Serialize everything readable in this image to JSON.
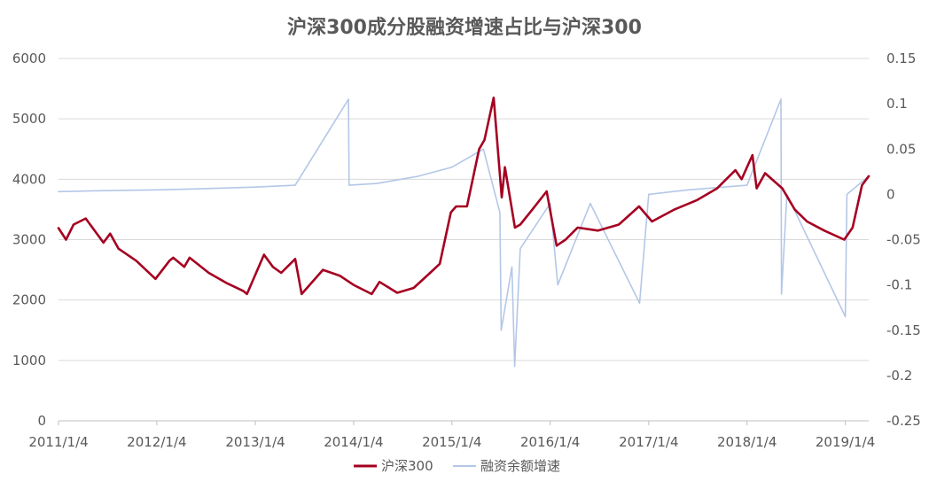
{
  "chart_data": {
    "type": "line",
    "title": "沪深300成分股融资增速占比与沪深300",
    "xlabel": "",
    "ylabel_left": "",
    "ylabel_right": "",
    "x_tick_labels": [
      "2011/1/4",
      "2012/1/4",
      "2013/1/4",
      "2014/1/4",
      "2015/1/4",
      "2016/1/4",
      "2017/1/4",
      "2018/1/4",
      "2019/1/4"
    ],
    "y_left_ticks": [
      "0",
      "1000",
      "2000",
      "3000",
      "4000",
      "5000",
      "6000"
    ],
    "y_right_ticks": [
      "0.15",
      "0.1",
      "0.05",
      "0",
      "-0.05",
      "-0.1",
      "-0.15",
      "-0.2",
      "-0.25"
    ],
    "y_left_lim": [
      0,
      6000
    ],
    "y_right_lim": [
      -0.25,
      0.15
    ],
    "x_range": [
      "2011/1/4",
      "2019/4/1"
    ],
    "grid": true,
    "legend_position": "bottom",
    "series": [
      {
        "name": "沪深300",
        "axis": "left",
        "color": "#A50021",
        "points": [
          [
            "2011/1/4",
            3190
          ],
          [
            "2011/2/1",
            3000
          ],
          [
            "2011/3/1",
            3250
          ],
          [
            "2011/4/15",
            3350
          ],
          [
            "2011/6/20",
            2950
          ],
          [
            "2011/7/15",
            3100
          ],
          [
            "2011/8/15",
            2850
          ],
          [
            "2011/10/20",
            2650
          ],
          [
            "2011/12/30",
            2350
          ],
          [
            "2012/2/20",
            2650
          ],
          [
            "2012/3/5",
            2700
          ],
          [
            "2012/4/15",
            2550
          ],
          [
            "2012/5/5",
            2700
          ],
          [
            "2012/7/15",
            2450
          ],
          [
            "2012/9/20",
            2280
          ],
          [
            "2012/11/20",
            2150
          ],
          [
            "2012/12/4",
            2100
          ],
          [
            "2013/2/5",
            2750
          ],
          [
            "2013/3/10",
            2550
          ],
          [
            "2013/4/10",
            2450
          ],
          [
            "2013/6/1",
            2680
          ],
          [
            "2013/6/25",
            2100
          ],
          [
            "2013/9/12",
            2500
          ],
          [
            "2013/11/15",
            2400
          ],
          [
            "2014/1/4",
            2250
          ],
          [
            "2014/3/12",
            2100
          ],
          [
            "2014/4/10",
            2300
          ],
          [
            "2014/6/15",
            2120
          ],
          [
            "2014/8/15",
            2200
          ],
          [
            "2014/10/15",
            2450
          ],
          [
            "2014/11/20",
            2600
          ],
          [
            "2014/12/31",
            3450
          ],
          [
            "2015/1/20",
            3550
          ],
          [
            "2015/3/1",
            3550
          ],
          [
            "2015/4/15",
            4500
          ],
          [
            "2015/5/5",
            4650
          ],
          [
            "2015/6/8",
            5350
          ],
          [
            "2015/7/8",
            3700
          ],
          [
            "2015/7/20",
            4200
          ],
          [
            "2015/8/26",
            3200
          ],
          [
            "2015/9/15",
            3250
          ],
          [
            "2015/10/30",
            3500
          ],
          [
            "2015/12/22",
            3800
          ],
          [
            "2016/1/28",
            2900
          ],
          [
            "2016/3/1",
            3000
          ],
          [
            "2016/4/15",
            3200
          ],
          [
            "2016/6/30",
            3150
          ],
          [
            "2016/9/15",
            3250
          ],
          [
            "2016/11/29",
            3550
          ],
          [
            "2017/1/16",
            3300
          ],
          [
            "2017/4/10",
            3500
          ],
          [
            "2017/6/30",
            3650
          ],
          [
            "2017/9/15",
            3850
          ],
          [
            "2017/11/22",
            4150
          ],
          [
            "2017/12/15",
            4000
          ],
          [
            "2018/1/24",
            4400
          ],
          [
            "2018/2/9",
            3850
          ],
          [
            "2018/3/12",
            4100
          ],
          [
            "2018/5/15",
            3850
          ],
          [
            "2018/6/30",
            3500
          ],
          [
            "2018/8/15",
            3300
          ],
          [
            "2018/10/18",
            3150
          ],
          [
            "2018/12/31",
            3000
          ],
          [
            "2019/1/31",
            3200
          ],
          [
            "2019/3/7",
            3900
          ],
          [
            "2019/4/1",
            4050
          ]
        ]
      },
      {
        "name": "融资余额增速",
        "axis": "right",
        "color": "#B4C7E7",
        "points": [
          [
            "2011/1/4",
            0.003
          ],
          [
            "2011/6/1",
            0.004
          ],
          [
            "2012/1/4",
            0.005
          ],
          [
            "2012/6/1",
            0.006
          ],
          [
            "2013/1/4",
            0.008
          ],
          [
            "2013/6/1",
            0.01
          ],
          [
            "2013/12/16",
            0.105
          ],
          [
            "2013/12/18",
            0.01
          ],
          [
            "2014/4/1",
            0.012
          ],
          [
            "2014/9/1",
            0.02
          ],
          [
            "2015/1/4",
            0.03
          ],
          [
            "2015/5/1",
            0.05
          ],
          [
            "2015/7/1",
            -0.02
          ],
          [
            "2015/7/6",
            -0.15
          ],
          [
            "2015/8/15",
            -0.08
          ],
          [
            "2015/8/25",
            -0.19
          ],
          [
            "2015/9/15",
            -0.06
          ],
          [
            "2016/1/4",
            -0.01
          ],
          [
            "2016/2/1",
            -0.1
          ],
          [
            "2016/6/1",
            -0.01
          ],
          [
            "2016/12/1",
            -0.12
          ],
          [
            "2017/1/4",
            0.0
          ],
          [
            "2017/6/1",
            0.005
          ],
          [
            "2018/1/4",
            0.01
          ],
          [
            "2018/5/10",
            0.105
          ],
          [
            "2018/5/12",
            -0.11
          ],
          [
            "2018/6/1",
            0.0
          ],
          [
            "2019/1/4",
            -0.135
          ],
          [
            "2019/1/10",
            0.0
          ],
          [
            "2019/4/1",
            0.02
          ]
        ]
      }
    ]
  }
}
